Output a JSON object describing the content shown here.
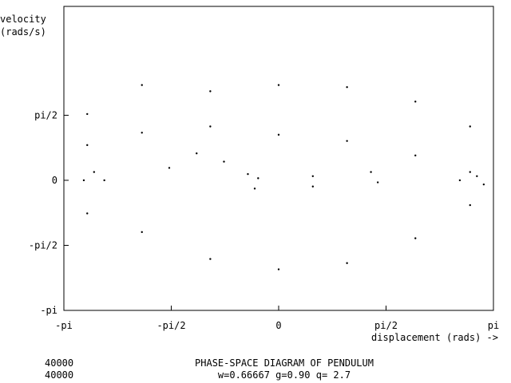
{
  "chart_data": {
    "type": "scatter",
    "title": "PHASE-SPACE DIAGRAM OF PENDULUM",
    "subtitle": "w=0.66667 g=0.90 q=  2.7",
    "ylabel_line1": "velocity",
    "ylabel_line2": "(rads/s)",
    "xlabel": "displacement (rads) ->",
    "xlim": [
      -3.1416,
      3.1416
    ],
    "ylim": [
      -3.1416,
      4.2
    ],
    "grid": false,
    "x_ticks": [
      {
        "value": -3.1416,
        "label": "-pi"
      },
      {
        "value": -1.5708,
        "label": "-pi/2"
      },
      {
        "value": 0,
        "label": "0"
      },
      {
        "value": 1.5708,
        "label": "pi/2"
      },
      {
        "value": 3.1416,
        "label": "pi"
      }
    ],
    "y_ticks": [
      {
        "value": -3.1416,
        "label": "-pi"
      },
      {
        "value": -1.5708,
        "label": "-pi/2"
      },
      {
        "value": 0,
        "label": "0"
      },
      {
        "value": 1.5708,
        "label": "pi/2"
      }
    ],
    "iterations": [
      "40000",
      "40000"
    ],
    "series": [
      {
        "color": "#000000",
        "points": [
          [
            -2.8,
            1.6
          ],
          [
            -2.0,
            2.3
          ],
          [
            -1.0,
            2.15
          ],
          [
            0.0,
            2.3
          ],
          [
            1.0,
            2.25
          ],
          [
            2.0,
            1.9
          ],
          [
            2.8,
            1.3
          ],
          [
            -2.8,
            0.85
          ],
          [
            -2.0,
            1.15
          ],
          [
            -1.0,
            1.3
          ],
          [
            0.0,
            1.1
          ],
          [
            1.0,
            0.95
          ],
          [
            2.0,
            0.6
          ],
          [
            2.8,
            0.2
          ],
          [
            -2.8,
            -0.8
          ],
          [
            -2.0,
            -1.25
          ],
          [
            -1.0,
            -1.9
          ],
          [
            0.0,
            -2.15
          ],
          [
            1.0,
            -2.0
          ],
          [
            2.0,
            -1.4
          ],
          [
            2.8,
            -0.6
          ],
          [
            -1.6,
            0.3
          ],
          [
            -1.2,
            0.65
          ],
          [
            -0.8,
            0.45
          ],
          [
            -0.45,
            0.15
          ],
          [
            -0.35,
            -0.2
          ],
          [
            -0.3,
            0.05
          ],
          [
            0.5,
            0.1
          ],
          [
            0.5,
            -0.15
          ],
          [
            1.35,
            0.2
          ],
          [
            1.45,
            -0.05
          ],
          [
            -2.85,
            0.0
          ],
          [
            -2.7,
            0.2
          ],
          [
            -2.55,
            0.0
          ],
          [
            2.65,
            0.0
          ],
          [
            2.9,
            0.1
          ],
          [
            3.0,
            -0.1
          ]
        ]
      }
    ]
  }
}
